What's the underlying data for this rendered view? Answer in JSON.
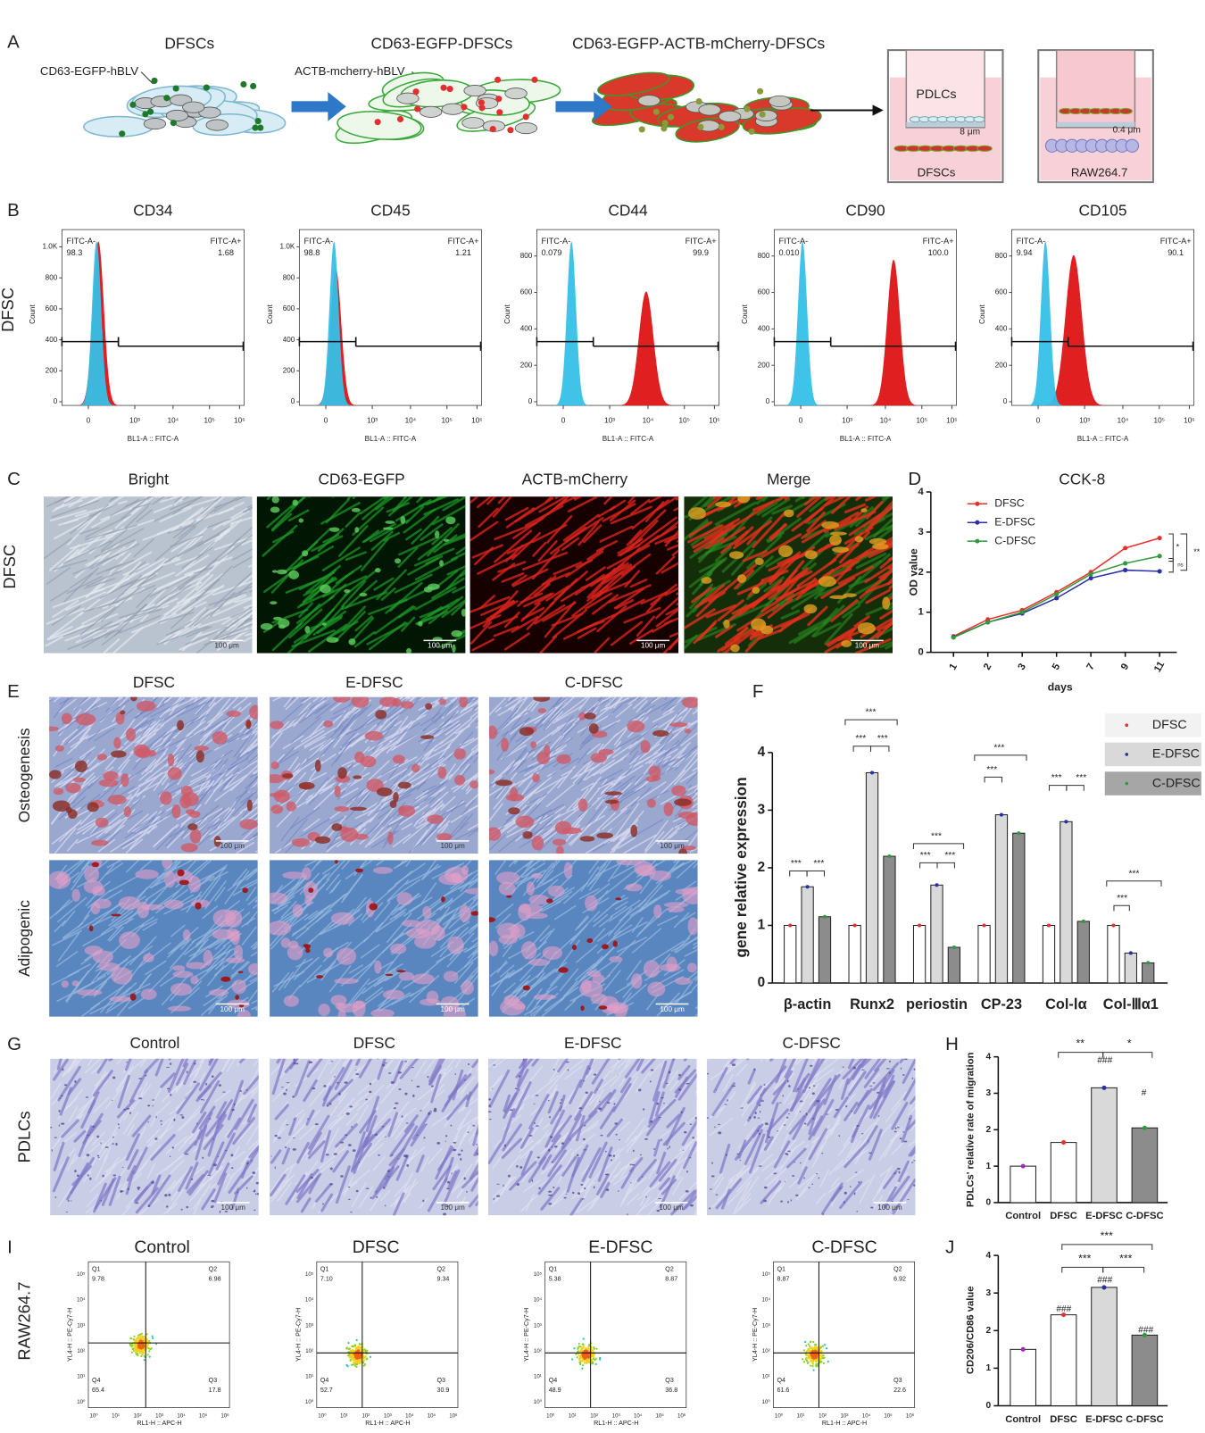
{
  "panel_labels": [
    "A",
    "B",
    "C",
    "D",
    "E",
    "F",
    "G",
    "H",
    "I",
    "J"
  ],
  "schematic": {
    "stages": [
      "DFSCs",
      "CD63-EGFP-DFSCs",
      "CD63-EGFP-ACTB-mCherry-DFSCs"
    ],
    "vectors": [
      "CD63-EGFP-hBLV",
      "ACTB-mcherry-hBLV"
    ],
    "transwell": [
      "PDLCs",
      "8 μm",
      "DFSCs",
      "0.4 μm",
      "RAW264.7"
    ]
  },
  "flow": {
    "row_label": "DFSC",
    "x_label": "BL1-A :: FITC-A",
    "y_label": "Count",
    "gate_neg": "FITC-A-",
    "gate_pos": "FITC-A+",
    "xticks": [
      "0",
      "10³",
      "10⁴",
      "10⁵",
      "10⁶"
    ],
    "panels": [
      {
        "title": "CD34",
        "neg": "98.3",
        "pos": "1.68",
        "yticks": [
          "0",
          "200",
          "400",
          "600",
          "800",
          "1.0K"
        ]
      },
      {
        "title": "CD45",
        "neg": "98.8",
        "pos": "1.21",
        "yticks": [
          "0",
          "200",
          "400",
          "600",
          "800",
          "1.0K"
        ]
      },
      {
        "title": "CD44",
        "neg": "0.079",
        "pos": "99.9",
        "yticks": [
          "0",
          "200",
          "400",
          "600",
          "800"
        ]
      },
      {
        "title": "CD90",
        "neg": "0.010",
        "pos": "100.0",
        "yticks": [
          "0",
          "200",
          "400",
          "600",
          "800"
        ]
      },
      {
        "title": "CD105",
        "neg": "9.94",
        "pos": "90.1",
        "yticks": [
          "0",
          "200",
          "400",
          "600",
          "800"
        ]
      }
    ]
  },
  "imaging": {
    "row_label": "DFSC",
    "columns": [
      "Bright",
      "CD63-EGFP",
      "ACTB-mCherry",
      "Merge"
    ],
    "scale_bar": "100 μm"
  },
  "differentiation": {
    "columns": [
      "DFSC",
      "E-DFSC",
      "C-DFSC"
    ],
    "rows": [
      "Osteogenesis",
      "Adipogenic"
    ],
    "scale_bar": "100 μm"
  },
  "migration": {
    "row_label": "PDLCs",
    "columns": [
      "Control",
      "DFSC",
      "E-DFSC",
      "C-DFSC"
    ],
    "scale_bar": "100 μm"
  },
  "macrophage": {
    "row_label": "RAW264.7",
    "columns": [
      "Control",
      "DFSC",
      "E-DFSC",
      "C-DFSC"
    ],
    "x_label": "RL1-H :: APC-H",
    "y_label": "YL4-H :: PE-Cy7-H",
    "xticks": [
      "10⁰",
      "10¹",
      "10²",
      "10³",
      "10⁴",
      "10⁵",
      "10⁶"
    ],
    "yticks": [
      "10⁰",
      "10¹",
      "10²",
      "10³",
      "10⁴",
      "10⁵"
    ],
    "quadrants": [
      "Q1",
      "Q2",
      "Q3",
      "Q4"
    ],
    "panels": [
      {
        "q1": "9.78",
        "q2": "6.98",
        "q3": "17.8",
        "q4": "65.4"
      },
      {
        "q1": "7.10",
        "q2": "9.34",
        "q3": "30.9",
        "q4": "52.7"
      },
      {
        "q1": "5.38",
        "q2": "8.87",
        "q3": "36.8",
        "q4": "48.9"
      },
      {
        "q1": "8.87",
        "q2": "6.92",
        "q3": "22.6",
        "q4": "61.6"
      }
    ]
  },
  "chart_data": [
    {
      "type": "line",
      "title": "CCK-8",
      "x_label": "days",
      "y_label": "OD value",
      "categories": [
        "1",
        "2",
        "3",
        "5",
        "7",
        "9",
        "11"
      ],
      "series": [
        {
          "name": "DFSC",
          "color": "#e8312a",
          "values": [
            0.4,
            0.82,
            1.05,
            1.5,
            2.0,
            2.6,
            2.85
          ]
        },
        {
          "name": "E-DFSC",
          "color": "#2a2fa6",
          "values": [
            0.38,
            0.75,
            0.97,
            1.35,
            1.85,
            2.05,
            2.02
          ]
        },
        {
          "name": "C-DFSC",
          "color": "#2e9a3c",
          "values": [
            0.37,
            0.75,
            1.0,
            1.45,
            1.95,
            2.22,
            2.4
          ]
        }
      ],
      "ylim": [
        0,
        4
      ],
      "yticks": [
        0,
        1,
        2,
        3,
        4
      ],
      "annotations": [
        "*",
        "**",
        "ns"
      ]
    },
    {
      "type": "grouped_bar",
      "y_label": "gene relative expression",
      "categories": [
        "β-actin",
        "Runx2",
        "periostin",
        "CP-23",
        "Col-Ⅰα",
        "Col-Ⅲα1"
      ],
      "series": [
        {
          "name": "DFSC",
          "color": "#ffffff",
          "legend_color": "#f2f2f2",
          "point_color": "#e8312a",
          "values": [
            1,
            1,
            1,
            1,
            1,
            1
          ]
        },
        {
          "name": "E-DFSC",
          "color": "#d9d9d9",
          "legend_color": "#d9d9d9",
          "point_color": "#2a2fa6",
          "values": [
            1.67,
            3.65,
            1.7,
            2.92,
            2.8,
            0.52
          ]
        },
        {
          "name": "C-DFSC",
          "color": "#8c8c8c",
          "legend_color": "#a6a6a6",
          "point_color": "#2e9a3c",
          "values": [
            1.15,
            2.2,
            0.62,
            2.6,
            1.07,
            0.35
          ]
        }
      ],
      "ylim": [
        0,
        4
      ],
      "yticks": [
        0,
        1,
        2,
        3,
        4
      ],
      "annotations": [
        "***",
        "***",
        "***",
        "***",
        "***",
        "***",
        "***",
        "***",
        "***",
        "***",
        "***",
        "***",
        "***",
        "***"
      ]
    },
    {
      "type": "bar",
      "y_label": "PDLCs' relative rate of migration",
      "categories": [
        "Control",
        "DFSC",
        "E-DFSC",
        "C-DFSC"
      ],
      "values": [
        1.0,
        1.65,
        3.15,
        2.05
      ],
      "colors": [
        "#ffffff",
        "#ffffff",
        "#d9d9d9",
        "#8c8c8c"
      ],
      "point_colors": [
        "#9b2fae",
        "#e8312a",
        "#2a2fa6",
        "#2e9a3c"
      ],
      "ylim": [
        0,
        4
      ],
      "yticks": [
        0,
        1,
        2,
        3,
        4
      ],
      "annotations": [
        "**",
        "*",
        "###",
        "#"
      ]
    },
    {
      "type": "bar",
      "y_label": "CD206/CD86 value",
      "categories": [
        "Control",
        "DFSC",
        "E-DFSC",
        "C-DFSC"
      ],
      "values": [
        1.5,
        2.42,
        3.15,
        1.88
      ],
      "colors": [
        "#ffffff",
        "#ffffff",
        "#d9d9d9",
        "#8c8c8c"
      ],
      "point_colors": [
        "#9b2fae",
        "#e8312a",
        "#2a2fa6",
        "#2e9a3c"
      ],
      "ylim": [
        0,
        4
      ],
      "yticks": [
        0,
        1,
        2,
        3,
        4
      ],
      "annotations": [
        "***",
        "***",
        "***",
        "###",
        "###",
        "###"
      ]
    }
  ]
}
